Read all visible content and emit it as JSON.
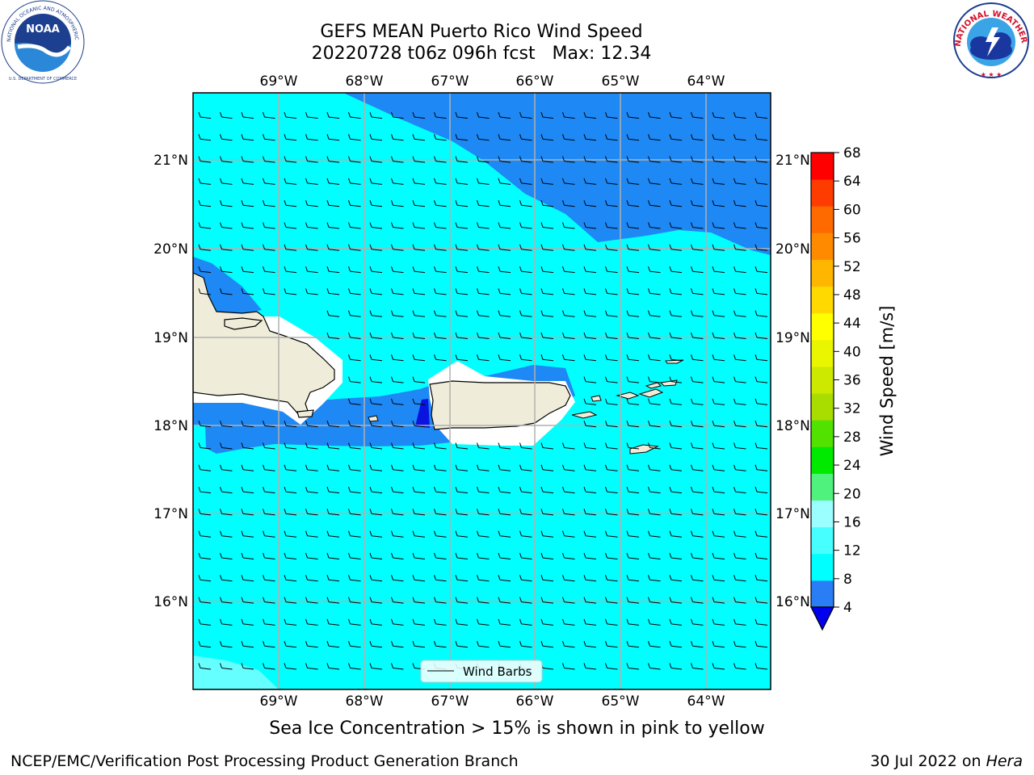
{
  "header": {
    "title_line1": "GEFS MEAN Puerto Rico Wind Speed",
    "title_line2": "20220728 t06z 096h fcst   Max: 12.34"
  },
  "logos": {
    "left": {
      "name": "NOAA",
      "ring_text": "NATIONAL OCEANIC AND ATMOSPHERIC ADMINISTRATION",
      "bottom_text": "U.S. DEPARTMENT OF COMMERCE",
      "icon": "noaa-logo"
    },
    "right": {
      "ring_text": "NATIONAL WEATHER SERVICE",
      "icon": "nws-logo"
    }
  },
  "map": {
    "lon_labels": [
      "69°W",
      "68°W",
      "67°W",
      "66°W",
      "65°W",
      "64°W"
    ],
    "lat_labels": [
      "21°N",
      "20°N",
      "19°N",
      "18°N",
      "17°N",
      "16°N"
    ],
    "legend_label": "Wind Barbs",
    "colors": {
      "light_cyan": "#00ffff",
      "blue": "#1e88f5",
      "deep_blue": "#0a14e0",
      "land": "#efedd9",
      "pale_cyan": "#66ffff"
    }
  },
  "colorbar": {
    "label": "Wind Speed [m/s]",
    "ticks": [
      "68",
      "64",
      "60",
      "56",
      "52",
      "48",
      "44",
      "40",
      "36",
      "32",
      "28",
      "24",
      "20",
      "16",
      "12",
      "8",
      "4"
    ],
    "colors_bottom_to_top": [
      "#2a7ef5",
      "#00ffff",
      "#48ffff",
      "#9cffff",
      "#4ff27d",
      "#00ea00",
      "#51e200",
      "#a9dd00",
      "#cee900",
      "#eaf500",
      "#ffff00",
      "#ffd900",
      "#ffb600",
      "#ff8a00",
      "#ff6a00",
      "#ff3c00",
      "#ff0000"
    ],
    "extend_min_color": "#0000ee"
  },
  "notes": {
    "sea_ice": "Sea Ice Concentration > 15% is shown in pink to yellow"
  },
  "footer": {
    "left": "NCEP/EMC/Verification Post Processing Product Generation Branch",
    "right_date": "30 Jul 2022 on",
    "right_host": "Hera"
  }
}
